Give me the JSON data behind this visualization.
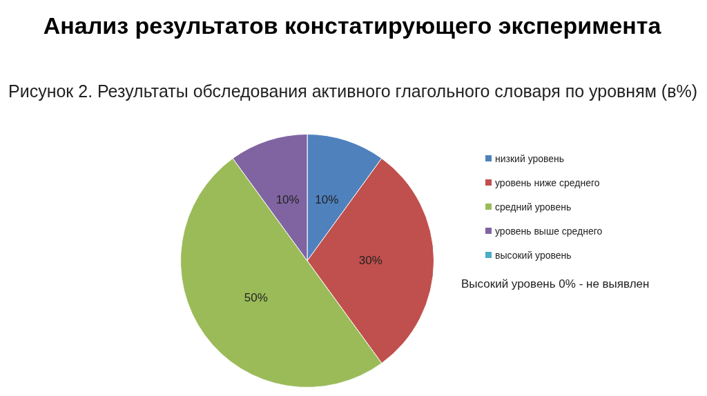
{
  "chart_data": {
    "type": "pie",
    "title": "Анализ результатов констатирующего эксперимента",
    "subtitle": "Рисунок 2. Результаты обследования активного глагольного словаря по уровням (в%)",
    "categories": [
      "низкий уровень",
      "уровень ниже среднего",
      "средний уровень",
      "уровень выше среднего",
      "высокий уровень"
    ],
    "values": [
      10,
      30,
      50,
      10,
      0
    ],
    "colors": [
      "#4f81bd",
      "#c0504d",
      "#9bbb59",
      "#8064a2",
      "#4bacc6"
    ],
    "value_labels": [
      "10%",
      "30%",
      "50%",
      "10%",
      null
    ],
    "legend": "right",
    "annotations": [
      "Высокий уровень 0% - не выявлен"
    ]
  }
}
